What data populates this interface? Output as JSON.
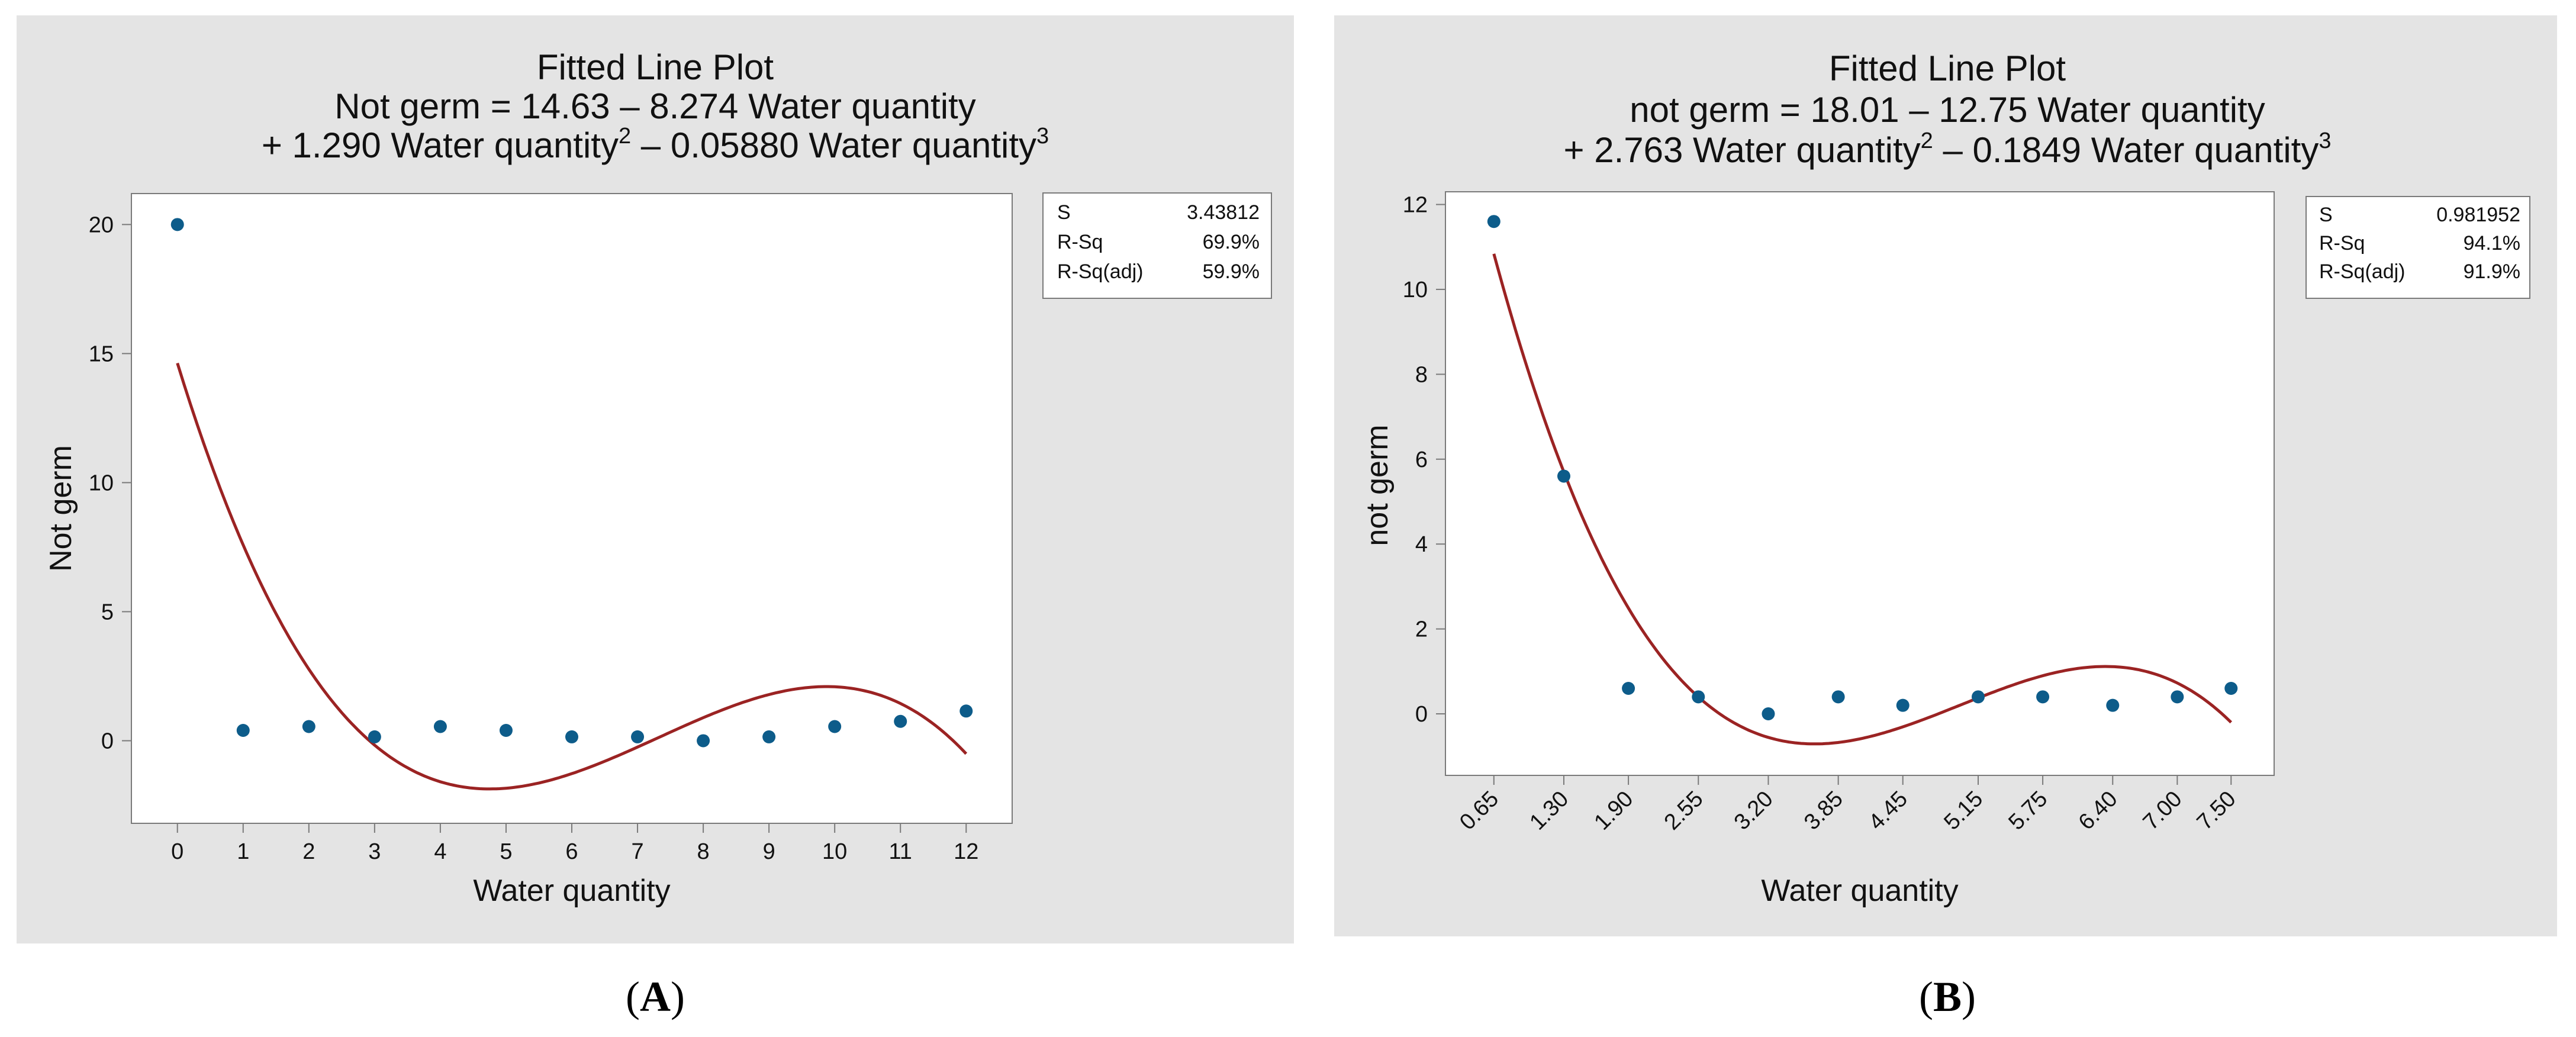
{
  "panels": {
    "A": {
      "title": "Fitted Line Plot",
      "eq_line1": "Not germ = 14.63 – 8.274 Water quantity",
      "eq_line2_a": "+ 1.290 Water quantity",
      "eq_line2_exp1": "2",
      "eq_line2_b": " – 0.05880 Water quantity",
      "eq_line2_exp2": "3",
      "caption": "(A)",
      "caption_letter": "A",
      "stats": [
        {
          "label": "S",
          "value": "3.43812"
        },
        {
          "label": "R-Sq",
          "value": "69.9%"
        },
        {
          "label": "R-Sq(adj)",
          "value": "59.9%"
        }
      ]
    },
    "B": {
      "title": "Fitted Line Plot",
      "eq_line1": "not germ = 18.01 – 12.75 Water quantity",
      "eq_line2_a": "+ 2.763 Water quantity",
      "eq_line2_exp1": "2",
      "eq_line2_b": " – 0.1849 Water quantity",
      "eq_line2_exp2": "3",
      "caption": "(B)",
      "caption_letter": "B",
      "stats": [
        {
          "label": "S",
          "value": "0.981952"
        },
        {
          "label": "R-Sq",
          "value": "94.1%"
        },
        {
          "label": "R-Sq(adj)",
          "value": "91.9%"
        }
      ]
    }
  },
  "colors": {
    "panel_bg": "#e4e4e4",
    "plot_bg": "#ffffff",
    "point": "#0d5c8a",
    "curve": "#9b2323",
    "axis": "#7a7a7a"
  },
  "chart_data": [
    {
      "id": "A",
      "type": "scatter",
      "title": "Fitted Line Plot",
      "xlabel": "Water quantity",
      "ylabel": "Not germ",
      "x_ticks": [
        "0",
        "1",
        "2",
        "3",
        "4",
        "5",
        "6",
        "7",
        "8",
        "9",
        "10",
        "11",
        "12"
      ],
      "x_tick_values": [
        0,
        1,
        2,
        3,
        4,
        5,
        6,
        7,
        8,
        9,
        10,
        11,
        12
      ],
      "y_ticks": [
        "0",
        "5",
        "10",
        "15",
        "20"
      ],
      "y_tick_values": [
        0,
        5,
        10,
        15,
        20
      ],
      "xlim": [
        -0.7,
        12.7
      ],
      "ylim": [
        -3.2,
        21.2
      ],
      "x": [
        0,
        1,
        2,
        3,
        4,
        5,
        6,
        7,
        8,
        9,
        10,
        11,
        12
      ],
      "y": [
        20,
        0.4,
        0.55,
        0.15,
        0.55,
        0.4,
        0.15,
        0.15,
        0,
        0.15,
        0.55,
        0.75,
        1.15
      ],
      "fit": {
        "type": "cubic",
        "coefficients": [
          14.63,
          -8.274,
          1.29,
          -0.0588
        ],
        "x_range": [
          0,
          12
        ]
      }
    },
    {
      "id": "B",
      "type": "scatter",
      "title": "Fitted Line Plot",
      "xlabel": "Water quantity",
      "ylabel": "not germ",
      "x_ticks": [
        "0.65",
        "1.30",
        "1.90",
        "2.55",
        "3.20",
        "3.85",
        "4.45",
        "5.15",
        "5.75",
        "6.40",
        "7.00",
        "7.50"
      ],
      "x_tick_values": [
        0.65,
        1.3,
        1.9,
        2.55,
        3.2,
        3.85,
        4.45,
        5.15,
        5.75,
        6.4,
        7.0,
        7.5
      ],
      "y_ticks": [
        "0",
        "2",
        "4",
        "6",
        "8",
        "10",
        "12"
      ],
      "y_tick_values": [
        0,
        2,
        4,
        6,
        8,
        10,
        12
      ],
      "xlim": [
        0.2,
        7.9
      ],
      "ylim": [
        -1.45,
        12.3
      ],
      "x": [
        0.65,
        1.3,
        1.9,
        2.55,
        3.2,
        3.85,
        4.45,
        5.15,
        5.75,
        6.4,
        7.0,
        7.5
      ],
      "y": [
        11.6,
        5.6,
        0.6,
        0.4,
        0,
        0.4,
        0.2,
        0.4,
        0.4,
        0.2,
        0.4,
        0.6
      ],
      "fit": {
        "type": "cubic",
        "coefficients": [
          18.01,
          -12.75,
          2.763,
          -0.1849
        ],
        "x_range": [
          0.65,
          7.5
        ]
      }
    }
  ]
}
